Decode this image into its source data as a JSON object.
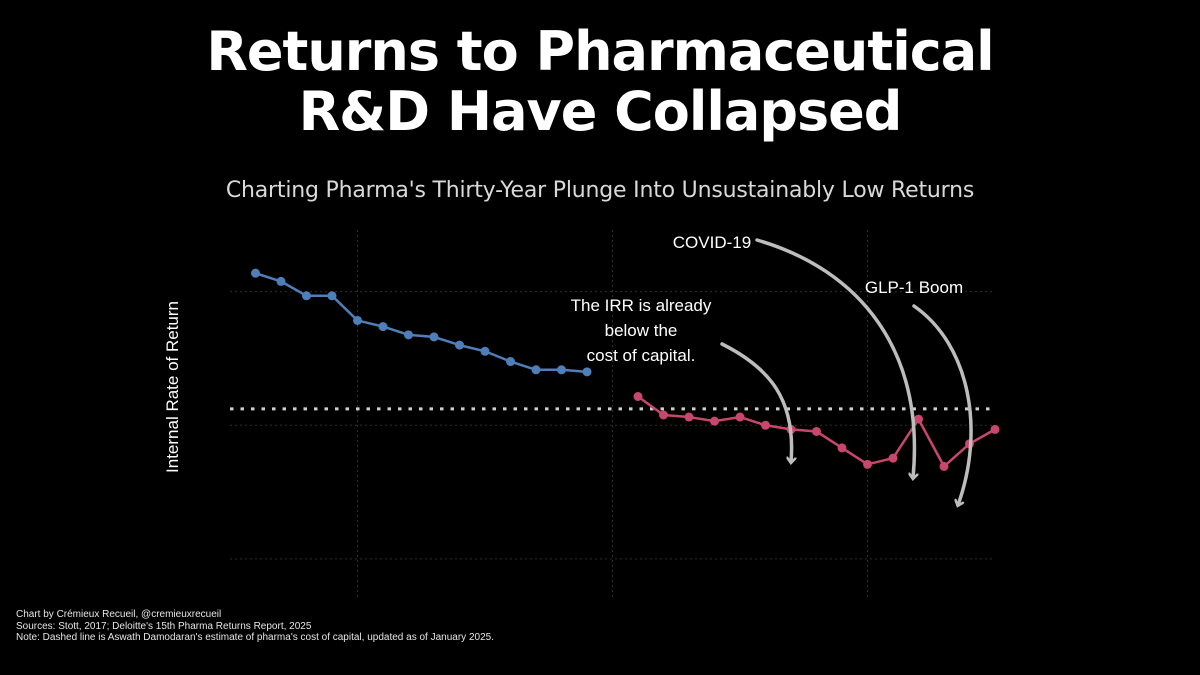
{
  "title_line1": "Returns to Pharmaceutical",
  "title_line2": "R&D Have Collapsed",
  "subtitle": "Charting Pharma's Thirty-Year Plunge Into Unsustainably Low Returns",
  "credits": [
    "Chart by Crémieux Recueil, @cremieuxrecueil",
    "Sources: Stott, 2017; Deloitte's 15th Pharma Returns Report, 2025",
    "Note: Dashed line is Aswath Damodaran's estimate of pharma's cost of capital, updated as of January 2025."
  ],
  "colors": {
    "background": "#000000",
    "series_stott": "#4e7fb8",
    "series_deloitte": "#c9466d",
    "cost_of_capital": "#cfcfcf",
    "annotation": "#bdbdbd"
  },
  "chart_data": {
    "type": "line",
    "ylabel": "Internal Rate of Return",
    "xlabel": "",
    "x_tick_labels_shown": false,
    "y_tick_labels_shown": false,
    "grid": true,
    "x_range": [
      1995,
      2025
    ],
    "y_range": [
      -2,
      16
    ],
    "cost_of_capital": 7.3,
    "series": [
      {
        "color": "#4e7fb8",
        "x": [
          1996,
          1997,
          1998,
          1999,
          2000,
          2001,
          2002,
          2003,
          2004,
          2005,
          2006,
          2007,
          2008,
          2009
        ],
        "values": [
          13.9,
          13.5,
          12.8,
          12.8,
          11.6,
          11.3,
          10.9,
          10.8,
          10.4,
          10.1,
          9.6,
          9.2,
          9.2,
          9.1
        ]
      },
      {
        "color": "#c9466d",
        "x": [
          2011,
          2012,
          2013,
          2014,
          2015,
          2016,
          2017,
          2018,
          2019,
          2020,
          2021,
          2022,
          2023,
          2024,
          2025
        ],
        "values": [
          7.9,
          7.0,
          6.9,
          6.7,
          6.9,
          6.5,
          6.3,
          6.2,
          5.4,
          4.6,
          4.9,
          6.8,
          4.5,
          5.6,
          6.3
        ]
      }
    ],
    "annotations": [
      {
        "text": [
          "The IRR is already",
          "below the",
          "cost of capital."
        ],
        "x": 2017,
        "y": 7.5
      },
      {
        "text": [
          "COVID-19"
        ],
        "x": 2022,
        "y": 7.1
      },
      {
        "text": [
          "GLP-1 Boom"
        ],
        "x": 2024,
        "y": 5.8
      }
    ]
  }
}
